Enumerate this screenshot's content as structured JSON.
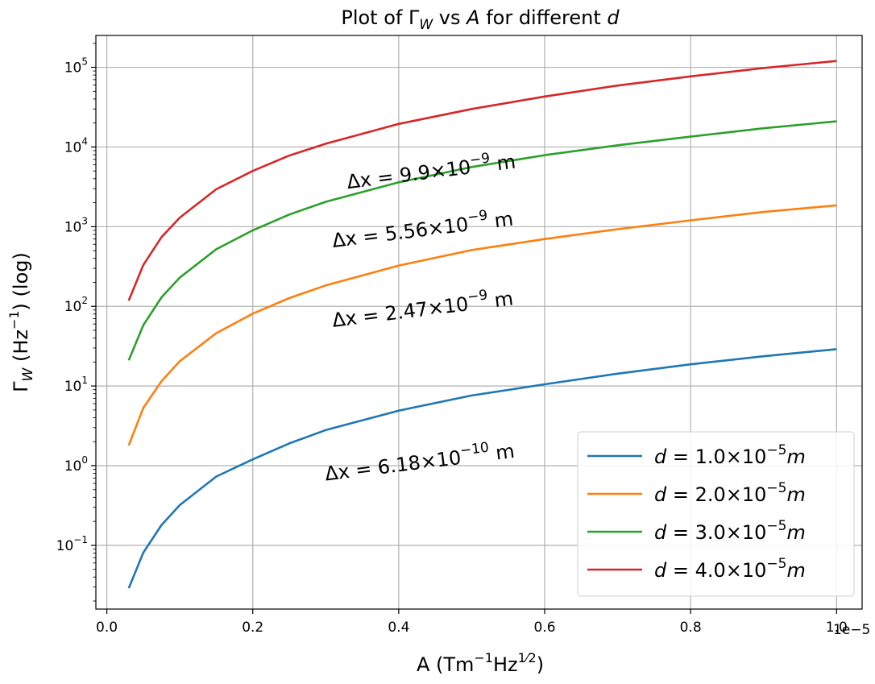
{
  "chart_data": {
    "type": "line",
    "title": {
      "prefix": "Plot of ",
      "gamma": "Γ",
      "gamma_sub": "W",
      "mid": " vs ",
      "a_var": "A",
      "suffix": " for different ",
      "d_var": "d"
    },
    "xlabel": {
      "base": "A (Tm",
      "exp1": "−1",
      "mid": "Hz",
      "exp2_num": "1",
      "exp2_den": "2",
      "close": ")"
    },
    "ylabel": {
      "gamma": "Γ",
      "sub": "W",
      "unit_open": " (Hz",
      "exp": "−1",
      "unit_close": ") (log)"
    },
    "x_offset_text": "1e−5",
    "xlim": [
      -1.5e-07,
      1.035e-05
    ],
    "ylim_log10": [
      -1.8,
      5.4
    ],
    "y_scale": "log",
    "grid": true,
    "legend_placement": "lower-right",
    "x_ticks": [
      {
        "value": 0.0,
        "label": "0.0"
      },
      {
        "value": 2e-06,
        "label": "0.2"
      },
      {
        "value": 4e-06,
        "label": "0.4"
      },
      {
        "value": 6e-06,
        "label": "0.6"
      },
      {
        "value": 8e-06,
        "label": "0.8"
      },
      {
        "value": 1e-05,
        "label": "1.0"
      }
    ],
    "y_ticks": [
      {
        "exp10": -1,
        "base": "10",
        "exp": "−1"
      },
      {
        "exp10": 0,
        "base": "10",
        "exp": "0"
      },
      {
        "exp10": 1,
        "base": "10",
        "exp": "1"
      },
      {
        "exp10": 2,
        "base": "10",
        "exp": "2"
      },
      {
        "exp10": 3,
        "base": "10",
        "exp": "3"
      },
      {
        "exp10": 4,
        "base": "10",
        "exp": "4"
      },
      {
        "exp10": 5,
        "base": "10",
        "exp": "5"
      }
    ],
    "x": [
      3e-07,
      5e-07,
      7.5e-07,
      1e-06,
      1.5e-06,
      2e-06,
      2.5e-06,
      3e-06,
      4e-06,
      5e-06,
      6e-06,
      7e-06,
      8e-06,
      9e-06,
      1e-05
    ],
    "series": [
      {
        "name": {
          "d": "d",
          "eq": " = 1.0×10",
          "exp": "−5",
          "m": "m"
        },
        "color": "#1f77b4",
        "values": [
          0.029,
          0.081,
          0.18,
          0.32,
          0.73,
          1.2,
          1.9,
          2.8,
          4.9,
          7.6,
          10.5,
          14.3,
          18.7,
          23.6,
          29.0
        ]
      },
      {
        "name": {
          "d": "d",
          "eq": " = 2.0×10",
          "exp": "−5",
          "m": "m"
        },
        "color": "#ff7f0e",
        "values": [
          1.8,
          5.3,
          11.5,
          20.5,
          46,
          81,
          127,
          183,
          325,
          508,
          700,
          930,
          1200,
          1530,
          1850
        ]
      },
      {
        "name": {
          "d": "d",
          "eq": " = 3.0×10",
          "exp": "−5",
          "m": "m"
        },
        "color": "#2ca02c",
        "values": [
          21,
          58,
          130,
          230,
          520,
          900,
          1420,
          2050,
          3600,
          5600,
          7900,
          10500,
          13500,
          17200,
          21000
        ]
      },
      {
        "name": {
          "d": "d",
          "eq": " = 4.0×10",
          "exp": "−5",
          "m": "m"
        },
        "color": "#d62728",
        "values": [
          118,
          330,
          740,
          1300,
          2950,
          5000,
          7800,
          11000,
          19500,
          30000,
          43000,
          59000,
          77000,
          98000,
          120000
        ]
      }
    ],
    "annotations": [
      {
        "x": 3.3e-06,
        "y": 3000,
        "angle_deg": -7,
        "prefix": "Δx = 9.9×10",
        "exp": "−9",
        "suffix": " m"
      },
      {
        "x": 3.1e-06,
        "y": 550,
        "angle_deg": -7,
        "prefix": "Δx = 5.56×10",
        "exp": "−9",
        "suffix": " m"
      },
      {
        "x": 3.1e-06,
        "y": 55,
        "angle_deg": -7,
        "prefix": "Δx = 2.47×10",
        "exp": "−9",
        "suffix": " m"
      },
      {
        "x": 3e-06,
        "y": 0.65,
        "angle_deg": -7,
        "prefix": "Δx = 6.18×10",
        "exp": "−10",
        "suffix": " m"
      }
    ]
  }
}
